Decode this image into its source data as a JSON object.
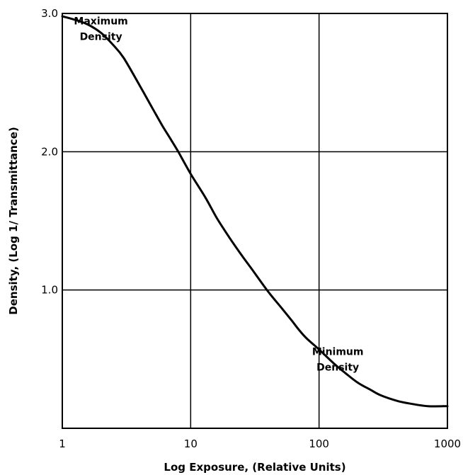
{
  "chart_data": {
    "type": "line",
    "title": "",
    "xlabel": "Log Exposure, (Relative Units)",
    "ylabel": "Density, (Log 1/ Transmittance)",
    "x_scale": "log",
    "xlim": [
      1,
      1000
    ],
    "ylim": [
      0,
      3.0
    ],
    "x_ticks": [
      {
        "value": 1,
        "label": "1"
      },
      {
        "value": 10,
        "label": "10"
      },
      {
        "value": 100,
        "label": "100"
      },
      {
        "value": 1000,
        "label": "1000"
      }
    ],
    "y_ticks": [
      {
        "value": 1.0,
        "label": "1.0"
      },
      {
        "value": 2.0,
        "label": "2.0"
      },
      {
        "value": 3.0,
        "label": "3.0"
      }
    ],
    "grid": true,
    "series": [
      {
        "x": [
          1,
          1.5,
          2,
          2.5,
          3,
          4,
          5,
          6,
          7,
          8,
          10,
          13,
          16,
          20,
          25,
          30,
          40,
          50,
          60,
          70,
          80,
          100,
          130,
          160,
          200,
          250,
          300,
          400,
          500,
          700,
          1000
        ],
        "y": [
          2.98,
          2.93,
          2.86,
          2.77,
          2.68,
          2.48,
          2.32,
          2.19,
          2.09,
          2.0,
          1.84,
          1.67,
          1.52,
          1.38,
          1.25,
          1.15,
          0.99,
          0.88,
          0.79,
          0.71,
          0.65,
          0.57,
          0.47,
          0.4,
          0.33,
          0.28,
          0.24,
          0.2,
          0.18,
          0.16,
          0.16
        ]
      }
    ],
    "annotations": [
      {
        "lines": [
          "Maximum",
          "Density"
        ],
        "x": 2.0,
        "y": 2.92
      },
      {
        "lines": [
          "Minimum",
          "Density"
        ],
        "x": 140,
        "y": 0.53
      }
    ]
  }
}
